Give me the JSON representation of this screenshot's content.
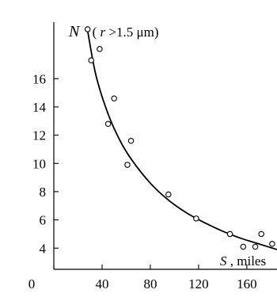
{
  "chart_data": {
    "type": "scatter",
    "x_tick_labels": [
      "0",
      "40",
      "80",
      "120",
      "160"
    ],
    "y_tick_labels": [
      "4",
      "6",
      "8",
      "10",
      "12",
      "14",
      "16"
    ],
    "x_ticks": [
      0,
      40,
      80,
      120,
      160
    ],
    "y_ticks": [
      4,
      6,
      8,
      10,
      12,
      14,
      16
    ],
    "xlim": [
      0,
      185
    ],
    "ylim": [
      2.5,
      20
    ],
    "xlabel": {
      "var": "S",
      "rest": ", miles"
    },
    "ylabel": {
      "var": "N",
      "condition_open": "(",
      "condition_var": "r",
      "condition_rest": ">1.5 μm)"
    },
    "grid": false,
    "series": [
      {
        "points": [
          [
            28,
            19.5
          ],
          [
            31,
            17.3
          ],
          [
            38,
            18.1
          ],
          [
            45,
            12.8
          ],
          [
            50,
            14.6
          ],
          [
            61,
            9.9
          ],
          [
            64,
            11.6
          ],
          [
            95,
            7.8
          ],
          [
            118,
            6.1
          ],
          [
            146,
            5.0
          ],
          [
            157,
            4.1
          ],
          [
            167,
            4.1
          ],
          [
            172,
            5.0
          ],
          [
            181,
            4.3
          ]
        ]
      }
    ],
    "fit_curve": {
      "x": [
        28,
        35,
        45,
        55,
        65,
        80,
        95,
        110,
        125,
        140,
        155,
        170,
        185
      ],
      "y": [
        19.4,
        16.2,
        13.5,
        11.6,
        10.2,
        8.6,
        7.4,
        6.5,
        5.8,
        5.2,
        4.7,
        4.3,
        3.9
      ]
    }
  }
}
